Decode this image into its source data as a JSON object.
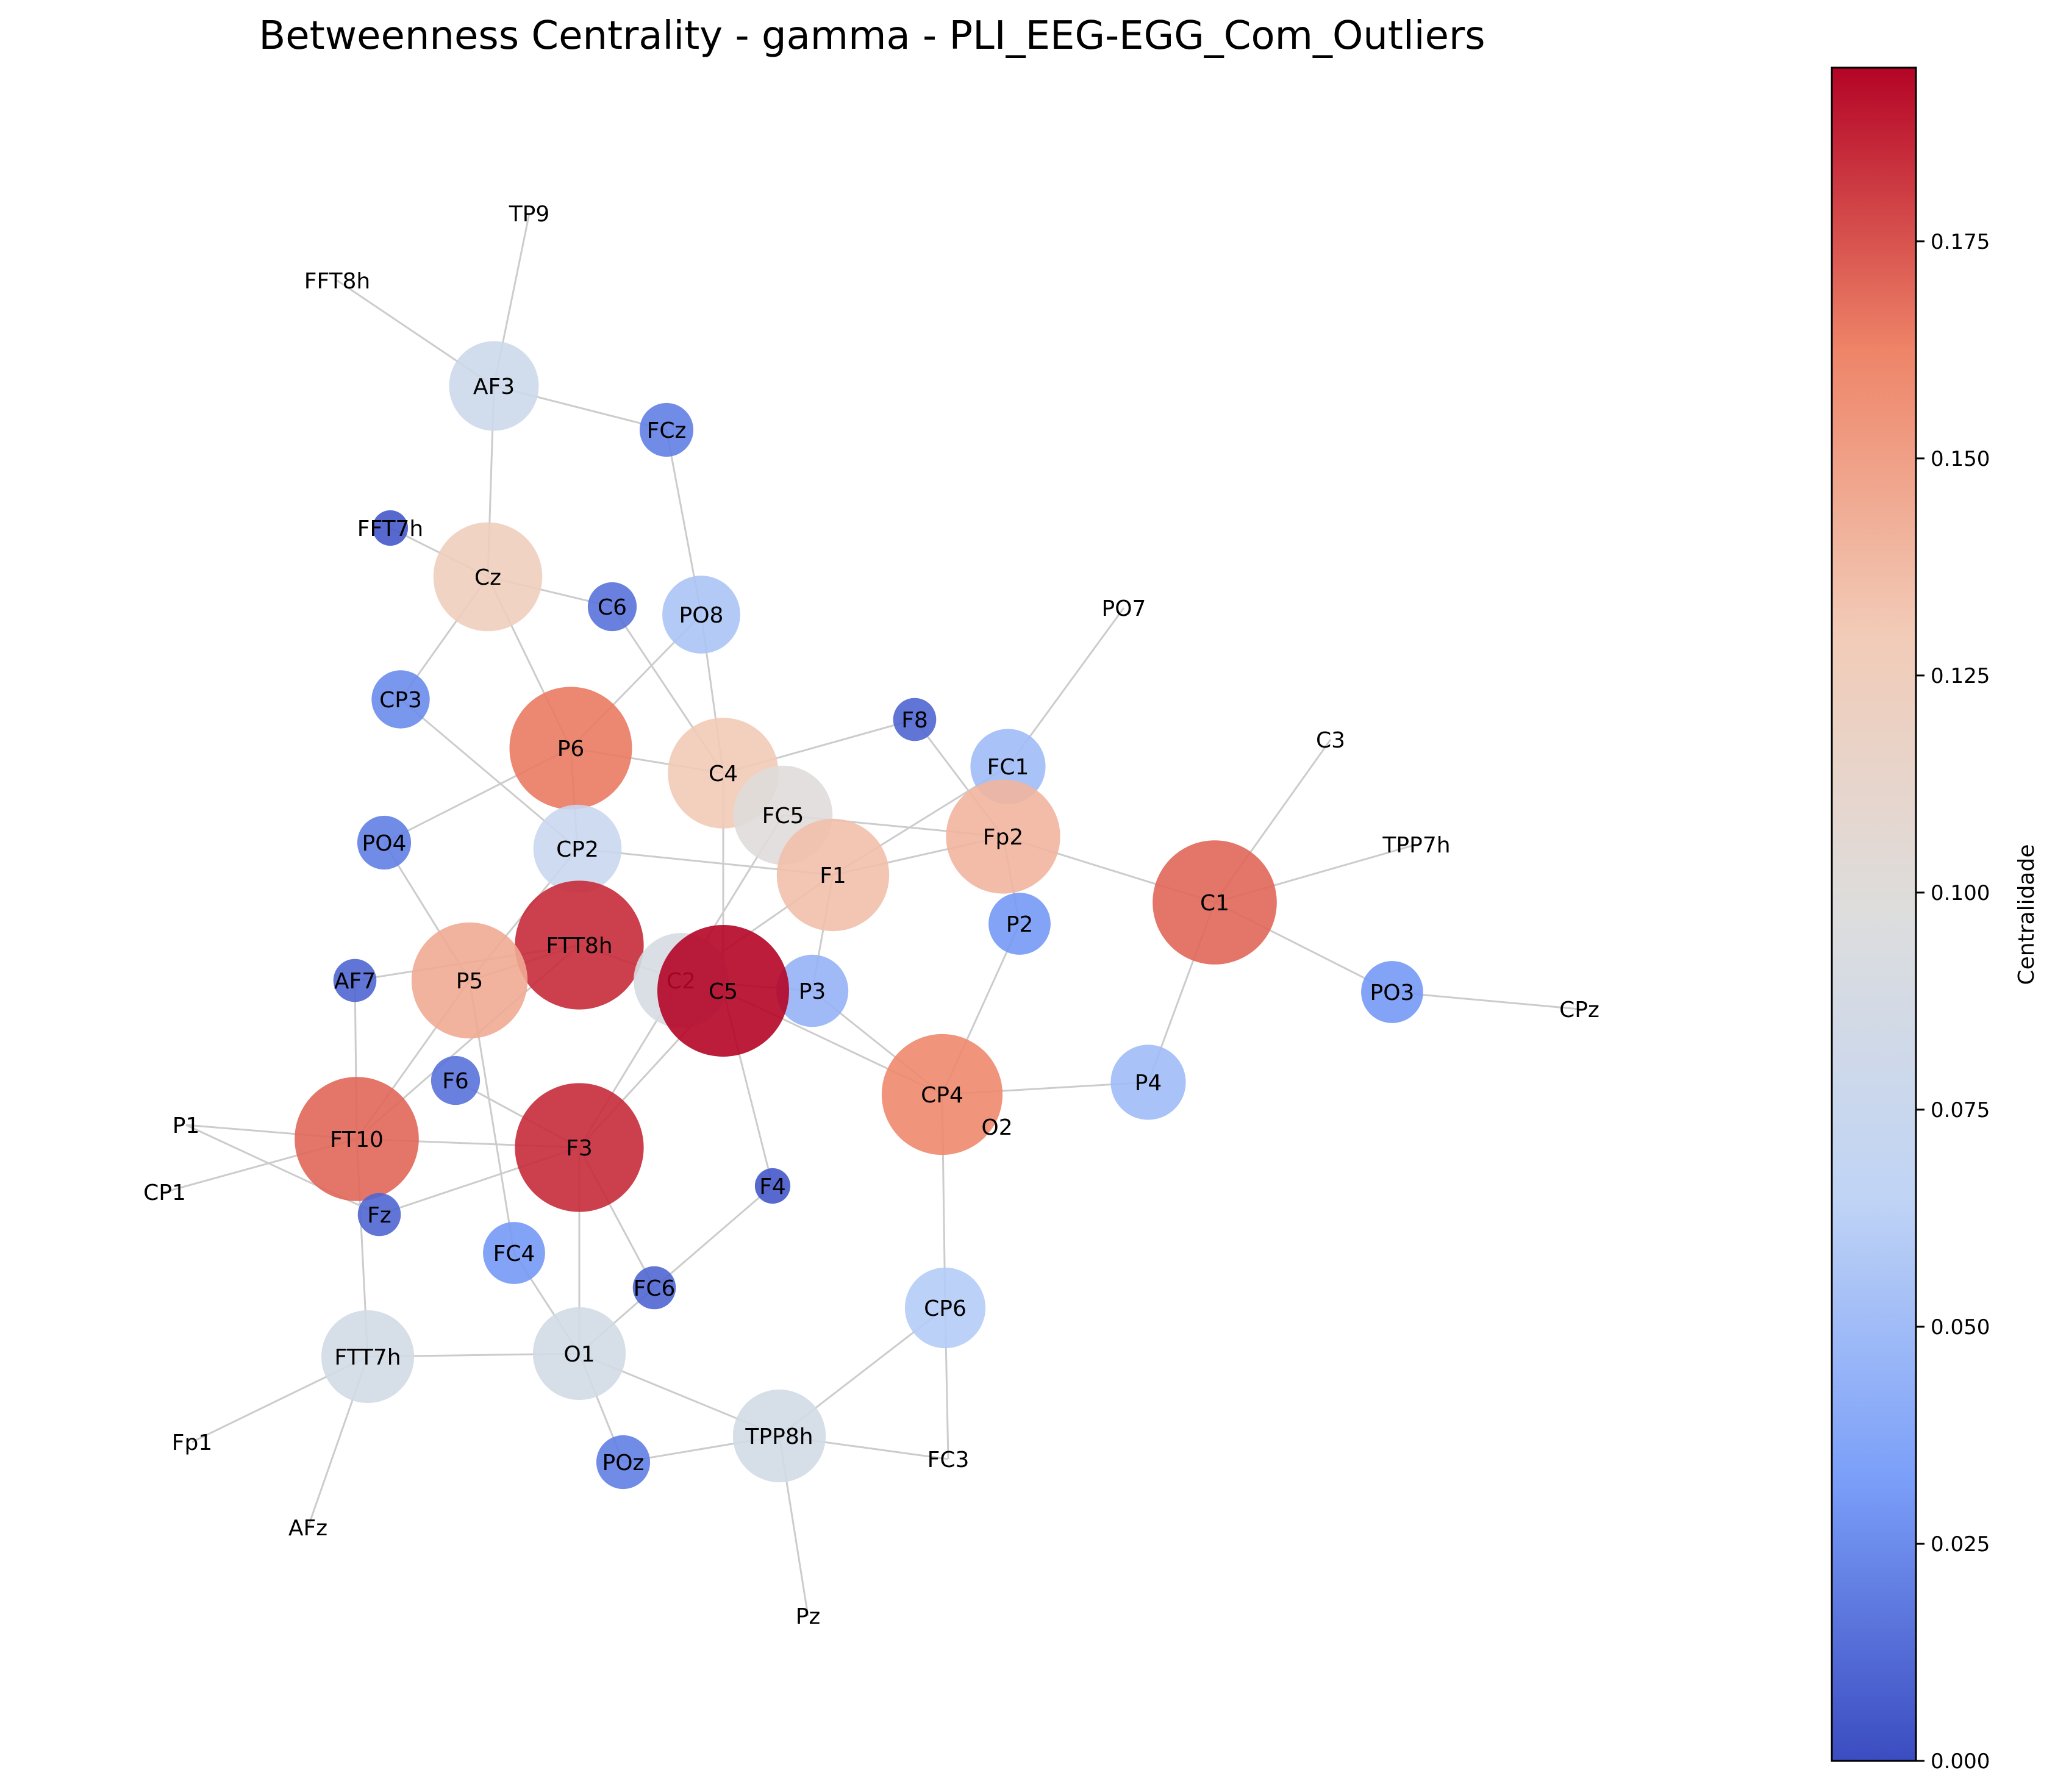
{
  "title": "Betweenness Centrality - gamma - PLI_EEG-EGG_Com_Outliers",
  "colorbar": {
    "label": "Centralidade",
    "min": 0,
    "max": 0.195,
    "ticks": [
      "0.000",
      "0.025",
      "0.050",
      "0.075",
      "0.100",
      "0.125",
      "0.150",
      "0.175"
    ],
    "tick_values": [
      0,
      0.025,
      0.05,
      0.075,
      0.1,
      0.125,
      0.15,
      0.175
    ],
    "colormap": "coolwarm",
    "colormap_stops": [
      "#3b4cc0",
      "#7b9ff9",
      "#c0d4f5",
      "#dddddd",
      "#f2cbb7",
      "#ee8468",
      "#b40426"
    ]
  },
  "nodes": [
    {
      "id": "TP9",
      "label": "TP9",
      "centrality": null
    },
    {
      "id": "FFT8h",
      "label": "FFT8h",
      "centrality": null
    },
    {
      "id": "AF3",
      "label": "AF3",
      "centrality": 0.078
    },
    {
      "id": "FCz",
      "label": "FCz",
      "centrality": 0.02
    },
    {
      "id": "FFT7h",
      "label": "FFT7h",
      "centrality": 0.005
    },
    {
      "id": "Cz",
      "label": "Cz",
      "centrality": 0.125
    },
    {
      "id": "C6",
      "label": "C6",
      "centrality": 0.015
    },
    {
      "id": "PO8",
      "label": "PO8",
      "centrality": 0.055
    },
    {
      "id": "PO7",
      "label": "PO7",
      "centrality": null
    },
    {
      "id": "CP3",
      "label": "CP3",
      "centrality": 0.025
    },
    {
      "id": "P6",
      "label": "P6",
      "centrality": 0.165
    },
    {
      "id": "C4",
      "label": "C4",
      "centrality": 0.13
    },
    {
      "id": "F8",
      "label": "F8",
      "centrality": 0.01
    },
    {
      "id": "FC1",
      "label": "FC1",
      "centrality": 0.05
    },
    {
      "id": "C3",
      "label": "C3",
      "centrality": null
    },
    {
      "id": "FC5",
      "label": "FC5",
      "centrality": 0.1
    },
    {
      "id": "Fp2",
      "label": "Fp2",
      "centrality": 0.14
    },
    {
      "id": "PO4",
      "label": "PO4",
      "centrality": 0.02
    },
    {
      "id": "CP2",
      "label": "CP2",
      "centrality": 0.075
    },
    {
      "id": "F1",
      "label": "F1",
      "centrality": 0.135
    },
    {
      "id": "TPP7h",
      "label": "TPP7h",
      "centrality": null
    },
    {
      "id": "C1",
      "label": "C1",
      "centrality": 0.17
    },
    {
      "id": "P2",
      "label": "P2",
      "centrality": 0.03
    },
    {
      "id": "FTT8h",
      "label": "FTT8h",
      "centrality": 0.185
    },
    {
      "id": "AF7",
      "label": "AF7",
      "centrality": 0.01
    },
    {
      "id": "C2",
      "label": "C2",
      "centrality": 0.09
    },
    {
      "id": "P3",
      "label": "P3",
      "centrality": 0.045
    },
    {
      "id": "P5",
      "label": "P5",
      "centrality": 0.145
    },
    {
      "id": "C5",
      "label": "C5",
      "centrality": 0.195
    },
    {
      "id": "PO3",
      "label": "PO3",
      "centrality": 0.03
    },
    {
      "id": "CPz",
      "label": "CPz",
      "centrality": null
    },
    {
      "id": "F6",
      "label": "F6",
      "centrality": 0.015
    },
    {
      "id": "CP4",
      "label": "CP4",
      "centrality": 0.16
    },
    {
      "id": "P4",
      "label": "P4",
      "centrality": 0.05
    },
    {
      "id": "O2",
      "label": "O2",
      "centrality": null
    },
    {
      "id": "P1",
      "label": "P1",
      "centrality": null
    },
    {
      "id": "FT10",
      "label": "FT10",
      "centrality": 0.17
    },
    {
      "id": "F3",
      "label": "F3",
      "centrality": 0.185
    },
    {
      "id": "CP1",
      "label": "CP1",
      "centrality": null
    },
    {
      "id": "F4",
      "label": "F4",
      "centrality": 0.005
    },
    {
      "id": "Fz",
      "label": "Fz",
      "centrality": 0.01
    },
    {
      "id": "FC4",
      "label": "FC4",
      "centrality": 0.03
    },
    {
      "id": "FC6",
      "label": "FC6",
      "centrality": 0.01
    },
    {
      "id": "CP6",
      "label": "CP6",
      "centrality": 0.06
    },
    {
      "id": "FTT7h",
      "label": "FTT7h",
      "centrality": 0.085
    },
    {
      "id": "O1",
      "label": "O1",
      "centrality": 0.085
    },
    {
      "id": "Fp1",
      "label": "Fp1",
      "centrality": null
    },
    {
      "id": "TPP8h",
      "label": "TPP8h",
      "centrality": 0.085
    },
    {
      "id": "POz",
      "label": "POz",
      "centrality": 0.02
    },
    {
      "id": "FC3",
      "label": "FC3",
      "centrality": null
    },
    {
      "id": "AFz",
      "label": "AFz",
      "centrality": null
    },
    {
      "id": "Pz",
      "label": "Pz",
      "centrality": null
    }
  ],
  "edges": [
    [
      "TP9",
      "AF3"
    ],
    [
      "FFT8h",
      "AF3"
    ],
    [
      "AF3",
      "FCz"
    ],
    [
      "AF3",
      "Cz"
    ],
    [
      "FCz",
      "PO8"
    ],
    [
      "FFT7h",
      "Cz"
    ],
    [
      "Cz",
      "C6"
    ],
    [
      "Cz",
      "CP3"
    ],
    [
      "Cz",
      "P6"
    ],
    [
      "C6",
      "C4"
    ],
    [
      "PO8",
      "C4"
    ],
    [
      "PO8",
      "P6"
    ],
    [
      "P6",
      "C4"
    ],
    [
      "P6",
      "CP2"
    ],
    [
      "P6",
      "PO4"
    ],
    [
      "C4",
      "F8"
    ],
    [
      "C4",
      "C5"
    ],
    [
      "F8",
      "Fp2"
    ],
    [
      "FC1",
      "PO7"
    ],
    [
      "FC1",
      "F1"
    ],
    [
      "FC5",
      "Fp2"
    ],
    [
      "FC5",
      "C2"
    ],
    [
      "Fp2",
      "F1"
    ],
    [
      "Fp2",
      "P2"
    ],
    [
      "Fp2",
      "C1"
    ],
    [
      "C1",
      "C3"
    ],
    [
      "C1",
      "TPP7h"
    ],
    [
      "C1",
      "PO3"
    ],
    [
      "C1",
      "P4"
    ],
    [
      "PO3",
      "CPz"
    ],
    [
      "CP3",
      "CP2"
    ],
    [
      "CP2",
      "F1"
    ],
    [
      "CP2",
      "P5"
    ],
    [
      "F1",
      "C2"
    ],
    [
      "F1",
      "P3"
    ],
    [
      "PO4",
      "P5"
    ],
    [
      "FTT8h",
      "AF7"
    ],
    [
      "FTT8h",
      "C2"
    ],
    [
      "FTT8h",
      "P5"
    ],
    [
      "FTT8h",
      "FT10"
    ],
    [
      "C2",
      "P3"
    ],
    [
      "C2",
      "F3"
    ],
    [
      "P3",
      "CP4"
    ],
    [
      "P2",
      "CP4"
    ],
    [
      "C5",
      "CP4"
    ],
    [
      "C5",
      "F3"
    ],
    [
      "C5",
      "F4"
    ],
    [
      "CP4",
      "P4"
    ],
    [
      "CP4",
      "CP6"
    ],
    [
      "AF7",
      "FT10"
    ],
    [
      "P5",
      "FT10"
    ],
    [
      "P5",
      "FC4"
    ],
    [
      "F6",
      "F3"
    ],
    [
      "FT10",
      "F3"
    ],
    [
      "FT10",
      "P1"
    ],
    [
      "FT10",
      "CP1"
    ],
    [
      "FT10",
      "FTT7h"
    ],
    [
      "P1",
      "Fz"
    ],
    [
      "F3",
      "Fz"
    ],
    [
      "F3",
      "O1"
    ],
    [
      "F3",
      "FC6"
    ],
    [
      "F4",
      "FC6"
    ],
    [
      "FC6",
      "O1"
    ],
    [
      "FC4",
      "O1"
    ],
    [
      "O1",
      "FTT7h"
    ],
    [
      "O1",
      "POz"
    ],
    [
      "O1",
      "TPP8h"
    ],
    [
      "FTT7h",
      "Fp1"
    ],
    [
      "FTT7h",
      "AFz"
    ],
    [
      "TPP8h",
      "POz"
    ],
    [
      "TPP8h",
      "CP6"
    ],
    [
      "TPP8h",
      "FC3"
    ],
    [
      "TPP8h",
      "Pz"
    ],
    [
      "CP6",
      "FC3"
    ]
  ]
}
